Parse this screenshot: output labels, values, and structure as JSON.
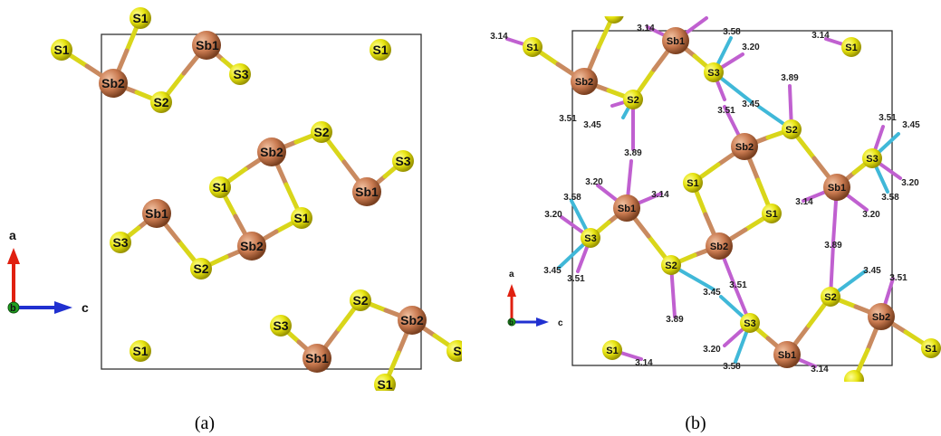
{
  "panel_a": {
    "caption": "(a)",
    "axis": {
      "a": "a",
      "b": "b",
      "c": "c"
    },
    "labels": {
      "s1_top": "S1",
      "s1_left": "S1",
      "sb2_left": "Sb2",
      "sb1_top": "Sb1",
      "s3_top": "S3",
      "s2_top": "S2",
      "s1_topright": "S1",
      "sb2_mid": "Sb2",
      "s2_mid": "S2",
      "s3_right": "S3",
      "sb1_right": "Sb1",
      "s1_mid": "S1",
      "s1_mid2": "S1",
      "sb1_left": "Sb1",
      "s3_left": "S3",
      "sb2_center": "Sb2",
      "s2_low": "S2",
      "s2_bottom": "S2",
      "s3_bottom": "S3",
      "sb2_bottomright": "Sb2",
      "s1_bottomleft": "S1",
      "sb1_bottom": "Sb1",
      "s1_bottomedge": "S1",
      "s_edge": "S"
    }
  },
  "panel_b": {
    "caption": "(b)",
    "axis": {
      "a": "a",
      "b": "b",
      "c": "c"
    },
    "labels": {
      "s1_tl": "S1",
      "sb2_tl": "Sb2",
      "sb1_top": "Sb1",
      "s2_tl": "S2",
      "s3_top": "S3",
      "s1_tr": "S1",
      "s2_right": "S2",
      "sb2_center": "Sb2",
      "s1_center": "S1",
      "sb1_right": "Sb1",
      "s3_right": "S3",
      "sb1_left": "Sb1",
      "s3_left": "S3",
      "s1_center2": "S1",
      "sb2_low": "Sb2",
      "s2_low": "S2",
      "s3_low": "S3",
      "s2_lowright": "S2",
      "sb2_lowright": "Sb2",
      "s1_farright": "S1",
      "s1_bl": "S1",
      "sb1_bottom": "Sb1"
    },
    "distances": {
      "d1": "3.14",
      "d2": "3.14",
      "d3": "3.58",
      "d4": "3.20",
      "d5": "3.14",
      "d6": "3.89",
      "d7": "3.51",
      "d8": "3.45",
      "d9": "3.51",
      "d10": "3.45",
      "d11": "3.51",
      "d12": "3.45",
      "d13": "3.89",
      "d14": "3.20",
      "d15": "3.58",
      "d16": "3.20",
      "d17": "3.14",
      "d18": "3.14",
      "d19": "3.20",
      "d20": "3.58",
      "d21": "3.45",
      "d22": "3.51",
      "d23": "3.89",
      "d24": "3.51",
      "d25": "3.20",
      "d26": "3.58",
      "d27": "3.14",
      "d28": "3.89",
      "d29": "3.45",
      "d30": "3.51",
      "d31": "3.45",
      "d32": "3.14"
    }
  },
  "colors": {
    "sulfur": "#e6e30f",
    "antimony": "#c97a50",
    "bond_s": "#d9d61a",
    "bond_sb": "#c98a60",
    "contact_pink": "#c060d0",
    "contact_cyan": "#40b8d8",
    "axis_a": "#e02010",
    "axis_c": "#2030d0",
    "axis_b": "#20a020"
  }
}
